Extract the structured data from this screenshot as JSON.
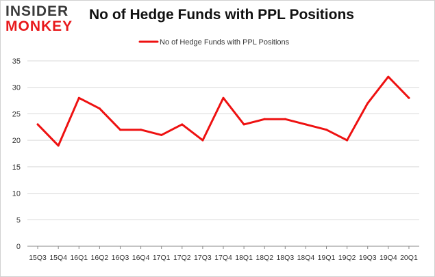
{
  "logo": {
    "line1": "INSIDER",
    "line2": "MONKEY"
  },
  "chart_data": {
    "type": "line",
    "title": "No of Hedge Funds with PPL Positions",
    "xlabel": "",
    "ylabel": "",
    "categories": [
      "15Q3",
      "15Q4",
      "16Q1",
      "16Q2",
      "16Q3",
      "16Q4",
      "17Q1",
      "17Q2",
      "17Q3",
      "17Q4",
      "18Q1",
      "18Q2",
      "18Q3",
      "18Q4",
      "19Q1",
      "19Q2",
      "19Q3",
      "19Q4",
      "20Q1"
    ],
    "series": [
      {
        "name": "No of Hedge Funds with PPL Positions",
        "values": [
          23,
          19,
          28,
          26,
          22,
          22,
          21,
          23,
          20,
          28,
          23,
          24,
          24,
          23,
          22,
          20,
          27,
          32,
          28
        ]
      }
    ],
    "ylim": [
      0,
      35
    ],
    "yticks": [
      "0",
      "5",
      "10",
      "15",
      "20",
      "25",
      "30",
      "35"
    ],
    "grid": true,
    "legend": "top-center",
    "colors": {
      "series": "#ee1111",
      "grid": "#d9d9d9",
      "axis": "#888888",
      "text": "#333333"
    }
  }
}
